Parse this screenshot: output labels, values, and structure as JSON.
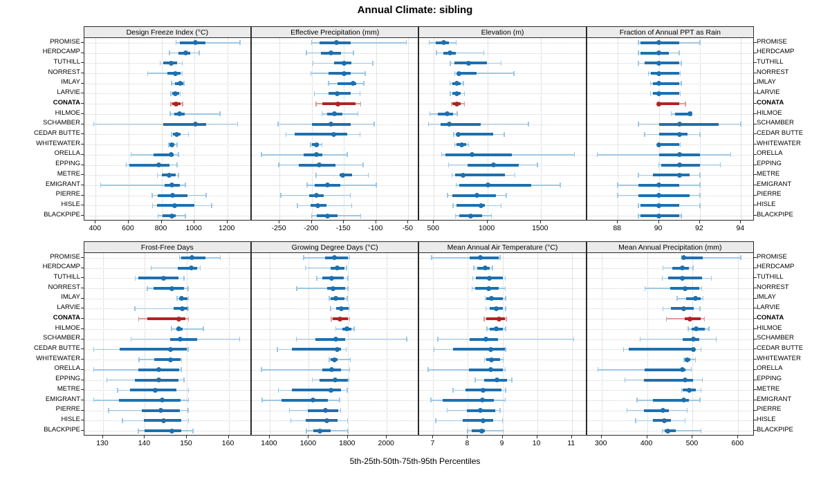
{
  "title": "Annual Climate: sibling",
  "caption": "5th-25th-50th-75th-95th Percentiles",
  "colors": {
    "blue": "#1c70b0",
    "blue_light": "#9cc7e4",
    "red": "#b22222",
    "red_light": "#dd9b94",
    "header_bg": "#ebebeb",
    "grid": "#c9c9c9",
    "border": "#2a2a2a"
  },
  "chart_data": {
    "type": "scatter",
    "subtype": "horizontal 5th-25th-50th-75th-95th percentile interval plot, 2x4 lattice of panels",
    "legend_note": "thin whisker = 5th-95th, thick bar = 25th-75th, dot = 50th percentile",
    "stations": [
      "PROMISE",
      "HERDCAMP",
      "TUTHILL",
      "NORREST",
      "IMLAY",
      "LARVIE",
      "CONATA",
      "HILMOE",
      "SCHAMBER",
      "CEDAR BUTTE",
      "WHITEWATER",
      "ORELLA",
      "EPPING",
      "METRE",
      "EMIGRANT",
      "PIERRE",
      "HISLE",
      "BLACKPIPE"
    ],
    "highlight_station": "CONATA",
    "percentile_levels": [
      5,
      25,
      50,
      75,
      95
    ],
    "panels": [
      {
        "title": "Design Freeze Index (°C)",
        "xlim": [
          330,
          1340
        ],
        "ticks": [
          400,
          600,
          800,
          1000,
          1200
        ],
        "values": [
          [
            889,
            910,
            1006,
            1068,
            1277
          ],
          [
            848,
            902,
            948,
            975,
            1028
          ],
          [
            792,
            811,
            857,
            895,
            927
          ],
          [
            715,
            836,
            882,
            917,
            927
          ],
          [
            861,
            881,
            915,
            933,
            936
          ],
          [
            856,
            864,
            883,
            907,
            914
          ],
          [
            857,
            864,
            889,
            914,
            928
          ],
          [
            853,
            878,
            910,
            942,
            1156
          ],
          [
            389,
            811,
            1006,
            1073,
            1263
          ],
          [
            861,
            871,
            893,
            917,
            964
          ],
          [
            843,
            848,
            861,
            878,
            895
          ],
          [
            615,
            753,
            857,
            874,
            903
          ],
          [
            586,
            603,
            783,
            850,
            895
          ],
          [
            774,
            802,
            848,
            885,
            903
          ],
          [
            431,
            820,
            861,
            910,
            945
          ],
          [
            743,
            778,
            868,
            958,
            1070
          ],
          [
            746,
            771,
            878,
            1000,
            1104
          ],
          [
            778,
            806,
            861,
            885,
            945
          ]
        ]
      },
      {
        "title": "Effective Precipitation (mm)",
        "xlim": [
          -293,
          -35
        ],
        "ticks": [
          -250,
          -200,
          -150,
          -100,
          -50
        ],
        "values": [
          [
            -200,
            -188,
            -161,
            -140,
            -53
          ],
          [
            -208,
            -186,
            -170,
            -154,
            -135
          ],
          [
            -198,
            -165,
            -150,
            -138,
            -105
          ],
          [
            -201,
            -174,
            -150,
            -140,
            -117
          ],
          [
            -174,
            -160,
            -136,
            -131,
            -119
          ],
          [
            -196,
            -174,
            -160,
            -139,
            -125
          ],
          [
            -193,
            -184,
            -159,
            -132,
            -124
          ],
          [
            -184,
            -176,
            -165,
            -152,
            -128
          ],
          [
            -252,
            -200,
            -170,
            -140,
            -103
          ],
          [
            -240,
            -226,
            -166,
            -145,
            -125
          ],
          [
            -202,
            -200,
            -193,
            -189,
            -184
          ],
          [
            -278,
            -213,
            -193,
            -184,
            -145
          ],
          [
            -251,
            -220,
            -188,
            -163,
            -120
          ],
          [
            -193,
            -157,
            -152,
            -137,
            -112
          ],
          [
            -207,
            -195,
            -176,
            -156,
            -100
          ],
          [
            -248,
            -204,
            -193,
            -181,
            -140
          ],
          [
            -222,
            -202,
            -191,
            -177,
            -138
          ],
          [
            -200,
            -192,
            -176,
            -160,
            -124
          ]
        ]
      },
      {
        "title": "Elevation (m)",
        "xlim": [
          365,
          1920
        ],
        "ticks": [
          500,
          1000,
          1500
        ],
        "values": [
          [
            457,
            521,
            590,
            643,
            708
          ],
          [
            526,
            590,
            650,
            708,
            969
          ],
          [
            654,
            693,
            825,
            997,
            1129
          ],
          [
            697,
            718,
            736,
            900,
            1249
          ],
          [
            650,
            671,
            718,
            750,
            778
          ],
          [
            654,
            671,
            714,
            750,
            787
          ],
          [
            665,
            676,
            714,
            753,
            787
          ],
          [
            462,
            536,
            622,
            680,
            718
          ],
          [
            451,
            564,
            643,
            937,
            1386
          ],
          [
            686,
            710,
            730,
            1055,
            1157
          ],
          [
            697,
            714,
            761,
            800,
            825
          ],
          [
            573,
            611,
            858,
            1232,
            1814
          ],
          [
            637,
            815,
            1057,
            1296,
            1468
          ],
          [
            671,
            701,
            772,
            1164,
            1258
          ],
          [
            708,
            740,
            1007,
            1414,
            1682
          ],
          [
            628,
            676,
            900,
            1082,
            1179
          ],
          [
            680,
            714,
            940,
            980,
            1129
          ],
          [
            701,
            740,
            843,
            954,
            1040
          ]
        ]
      },
      {
        "title": "Fraction of Annual PPT as Rain",
        "xlim": [
          86.5,
          94.6
        ],
        "ticks": [
          88,
          90,
          92,
          94
        ],
        "values": [
          [
            89,
            89.1,
            90,
            91,
            92
          ],
          [
            89,
            89.1,
            90,
            90.5,
            91
          ],
          [
            89,
            89.3,
            90,
            91,
            91.1
          ],
          [
            89.5,
            89.6,
            90,
            91,
            91.05
          ],
          [
            89.6,
            89.7,
            90,
            91,
            91.1
          ],
          [
            89.6,
            89.7,
            90,
            91,
            91.05
          ],
          [
            90,
            90,
            90,
            91,
            91.3
          ],
          [
            90.6,
            90.8,
            91.5,
            91.5,
            91.6
          ],
          [
            89,
            90,
            91,
            92.9,
            94
          ],
          [
            89.3,
            90,
            91,
            91.4,
            92
          ],
          [
            90,
            90,
            90,
            91,
            91.05
          ],
          [
            87,
            90,
            91,
            92,
            93.5
          ],
          [
            90,
            90.1,
            91,
            92,
            93
          ],
          [
            89,
            89.7,
            91,
            91.5,
            92
          ],
          [
            88,
            89,
            90,
            91,
            92
          ],
          [
            88,
            89,
            90,
            91.5,
            92
          ],
          [
            89,
            89.1,
            90,
            91,
            92
          ],
          [
            89,
            89.1,
            90,
            91,
            91.1
          ]
        ]
      },
      {
        "title": "Frost-Free Days",
        "xlim": [
          125.5,
          165.2
        ],
        "ticks": [
          130,
          140,
          150,
          160
        ],
        "values": [
          [
            148.3,
            148.6,
            151.2,
            154.4,
            158
          ],
          [
            141.5,
            147.8,
            151,
            152.5,
            153.2
          ],
          [
            137.7,
            138.5,
            144.4,
            148,
            149.3
          ],
          [
            140.6,
            142.1,
            146.4,
            149.3,
            150.3
          ],
          [
            147.7,
            148.2,
            148.8,
            150.2,
            150.4
          ],
          [
            137.6,
            146.8,
            149,
            150.1,
            150.3
          ],
          [
            138.5,
            140.6,
            148.1,
            149.6,
            150.4
          ],
          [
            146.4,
            147.5,
            148.1,
            149,
            154
          ],
          [
            136.7,
            146,
            148.5,
            152.5,
            162.6
          ],
          [
            127.8,
            134,
            146.2,
            150,
            150.3
          ],
          [
            138.6,
            142.2,
            146.2,
            148.5,
            148.8
          ],
          [
            127.8,
            138.4,
            143.3,
            148.2,
            148.7
          ],
          [
            130.9,
            137.6,
            143.3,
            148,
            149.3
          ],
          [
            133.5,
            136.4,
            142.5,
            147.6,
            150.4
          ],
          [
            127.8,
            133.8,
            144.2,
            148.5,
            150.4
          ],
          [
            131.3,
            139.3,
            143.8,
            148.3,
            150.3
          ],
          [
            134.6,
            139.7,
            144.4,
            148.7,
            150.4
          ],
          [
            138.4,
            139.9,
            146.4,
            148.7,
            151.5
          ]
        ]
      },
      {
        "title": "Growing Degree Days (°C)",
        "xlim": [
          1308,
          2160
        ],
        "ticks": [
          1400,
          1600,
          1800,
          2000
        ],
        "values": [
          [
            1574,
            1685,
            1732,
            1800,
            1809
          ],
          [
            1583,
            1712,
            1747,
            1783,
            1793
          ],
          [
            1642,
            1668,
            1718,
            1779,
            1800
          ],
          [
            1538,
            1693,
            1724,
            1785,
            1800
          ],
          [
            1705,
            1712,
            1738,
            1783,
            1797
          ],
          [
            1712,
            1740,
            1767,
            1803,
            1809
          ],
          [
            1715,
            1724,
            1759,
            1800,
            1809
          ],
          [
            1738,
            1773,
            1794,
            1820,
            1832
          ],
          [
            1536,
            1635,
            1738,
            1785,
            2102
          ],
          [
            1439,
            1515,
            1747,
            1767,
            1791
          ],
          [
            1705,
            1712,
            1732,
            1748,
            1814
          ],
          [
            1357,
            1668,
            1717,
            1767,
            1809
          ],
          [
            1618,
            1654,
            1736,
            1799,
            1806
          ],
          [
            1445,
            1515,
            1715,
            1764,
            1797
          ],
          [
            1362,
            1459,
            1623,
            1697,
            1759
          ],
          [
            1501,
            1595,
            1685,
            1752,
            1764
          ],
          [
            1509,
            1583,
            1691,
            1748,
            1799
          ],
          [
            1588,
            1623,
            1656,
            1712,
            1800
          ]
        ]
      },
      {
        "title": "Mean Annual Air Temperature (°C)",
        "xlim": [
          6.6,
          11.4
        ],
        "ticks": [
          7,
          8,
          9,
          10,
          11
        ],
        "values": [
          [
            6.95,
            8.05,
            8.36,
            8.88,
            8.93
          ],
          [
            8.17,
            8.27,
            8.5,
            8.63,
            8.71
          ],
          [
            8.14,
            8.23,
            8.63,
            9.0,
            9.08
          ],
          [
            8.12,
            8.21,
            8.6,
            8.88,
            9.08
          ],
          [
            8.5,
            8.53,
            8.67,
            9.0,
            9.09
          ],
          [
            8.52,
            8.63,
            8.82,
            9.01,
            9.09
          ],
          [
            8.47,
            8.53,
            8.89,
            9.07,
            9.11
          ],
          [
            8.55,
            8.63,
            8.82,
            9.01,
            9.09
          ],
          [
            7.13,
            8.05,
            8.53,
            8.86,
            11.06
          ],
          [
            7.02,
            7.57,
            8.65,
            9.06,
            9.09
          ],
          [
            8.48,
            8.53,
            8.67,
            8.93,
            9.02
          ],
          [
            6.85,
            8.03,
            8.65,
            9.0,
            9.08
          ],
          [
            8.21,
            8.47,
            8.84,
            9.13,
            9.27
          ],
          [
            7.57,
            7.94,
            8.45,
            8.96,
            9.09
          ],
          [
            6.93,
            7.28,
            8.43,
            8.76,
            9.08
          ],
          [
            7.4,
            7.97,
            8.36,
            8.78,
            8.93
          ],
          [
            7.07,
            7.86,
            8.45,
            8.73,
            9.0
          ],
          [
            7.99,
            8.12,
            8.4,
            8.5,
            9.02
          ]
        ]
      },
      {
        "title": "Mean Annual Precipitation (mm)",
        "xlim": [
          268,
          633
        ],
        "ticks": [
          300,
          400,
          500,
          600
        ],
        "values": [
          [
            476,
            478,
            480,
            522,
            606
          ],
          [
            435,
            456,
            478,
            492,
            501
          ],
          [
            433,
            446,
            478,
            521,
            541
          ],
          [
            395,
            451,
            483,
            515,
            520
          ],
          [
            466,
            486,
            506,
            518,
            523
          ],
          [
            435,
            453,
            481,
            503,
            516
          ],
          [
            442,
            483,
            494,
            518,
            526
          ],
          [
            490,
            498,
            508,
            527,
            536
          ],
          [
            385,
            478,
            501,
            515,
            552
          ],
          [
            348,
            360,
            502,
            506,
            518
          ],
          [
            481,
            483,
            488,
            495,
            506
          ],
          [
            292,
            394,
            477,
            484,
            497
          ],
          [
            351,
            393,
            483,
            501,
            521
          ],
          [
            476,
            478,
            493,
            507,
            518
          ],
          [
            378,
            412,
            480,
            492,
            516
          ],
          [
            356,
            393,
            435,
            448,
            488
          ],
          [
            375,
            413,
            438,
            452,
            483
          ],
          [
            433,
            438,
            446,
            463,
            518
          ]
        ]
      }
    ]
  }
}
